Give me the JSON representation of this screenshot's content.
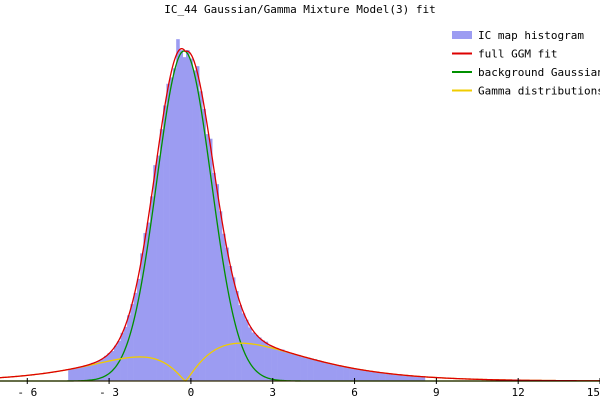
{
  "chart_data": {
    "type": "line",
    "title": "IC_44 Gaussian/Gamma Mixture Model(3) fit",
    "xlabel": "",
    "ylabel": "",
    "xlim": [
      -7,
      15
    ],
    "ylim": [
      0,
      1.05
    ],
    "x_ticks": [
      -6,
      -3,
      0,
      3,
      6,
      9,
      12,
      15
    ],
    "x_tick_labels": [
      "- 6",
      "- 3",
      "0",
      "3",
      "6",
      "9",
      "12",
      "15"
    ],
    "grid": false,
    "legend_position": "top-right",
    "legend": [
      {
        "label": "IC map histogram",
        "color": "#9c9cf2",
        "kind": "histogram"
      },
      {
        "label": "full GGM fit",
        "color": "#dd0000",
        "kind": "line"
      },
      {
        "label": "background Gaussian",
        "color": "#009000",
        "kind": "line"
      },
      {
        "label": "Gamma distributions",
        "color": "#f0cc00",
        "kind": "line"
      }
    ],
    "models": {
      "background_gaussian": {
        "amplitude": 0.96,
        "mean": -0.25,
        "sd": 1.0
      },
      "gamma_negative": {
        "amplitude": 0.07,
        "shape": 2.2,
        "scale": 1.4,
        "mirror": true,
        "cutoff": -0.2
      },
      "gamma_positive": {
        "amplitude": 0.11,
        "shape": 2.2,
        "scale": 1.7,
        "cutoff": -0.2
      }
    },
    "histogram": {
      "bin_width": 0.12,
      "range": [
        -4.5,
        8.5
      ],
      "values": []
    }
  }
}
